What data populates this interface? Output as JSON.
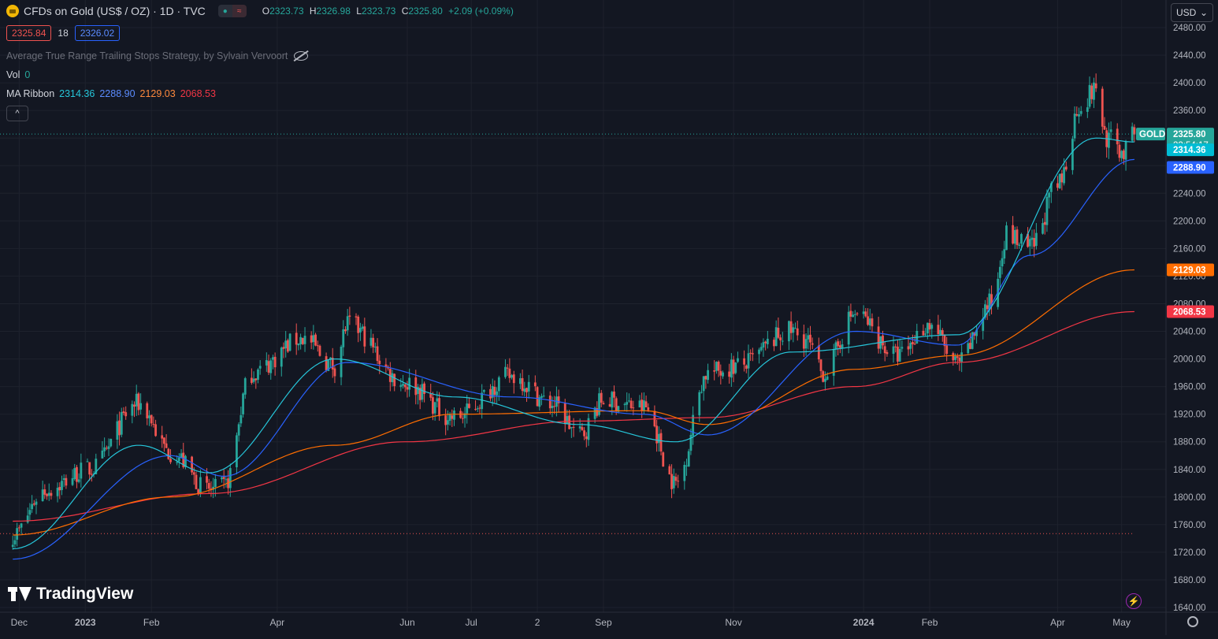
{
  "header": {
    "symbol_title": "CFDs on Gold (US$ / OZ) · 1D · TVC",
    "status_icons": [
      "●",
      "≈"
    ],
    "ohlc": {
      "o_label": "O",
      "o": "2323.73",
      "h_label": "H",
      "h": "2326.98",
      "l_label": "L",
      "l": "2323.73",
      "c_label": "C",
      "c": "2325.80",
      "change": "+2.09 (+0.09%)"
    },
    "sell_price": "2325.84",
    "spread": "18",
    "buy_price": "2326.02"
  },
  "indicators": {
    "strategy": "Average True Range Trailing Stops Strategy, by Sylvain Vervoort",
    "vol_label": "Vol",
    "vol_value": "0",
    "ma_label": "MA Ribbon",
    "ma_values": [
      "2314.36",
      "2288.90",
      "2129.03",
      "2068.53"
    ],
    "collapse_symbol": "^"
  },
  "currency": {
    "label": "USD",
    "chevron": "⌄"
  },
  "logo": {
    "text": "TradingView"
  },
  "colors": {
    "up": "#26a69a",
    "down": "#ef5350",
    "ma1": "#26c6da",
    "ma2": "#2962ff",
    "ma3": "#ff6d00",
    "ma4": "#f23645"
  },
  "chart_data": {
    "type": "candlestick",
    "symbol": "GOLD",
    "ylim": [
      1630,
      2480
    ],
    "yticks": [
      "1640.00",
      "1680.00",
      "1720.00",
      "1760.00",
      "1800.00",
      "1840.00",
      "1880.00",
      "1920.00",
      "1960.00",
      "2000.00",
      "2040.00",
      "2080.00",
      "2120.00",
      "2160.00",
      "2200.00",
      "2240.00",
      "2280.00",
      "2320.00",
      "2360.00",
      "2400.00",
      "2440.00",
      "2480.00"
    ],
    "xticks": [
      "Dec",
      "2023",
      "Feb",
      "Apr",
      "Jun",
      "Jul",
      "2",
      "Sep",
      "Nov",
      "2024",
      "Feb",
      "Apr",
      "May"
    ],
    "price_labels": [
      {
        "name": "GOLD",
        "value": "2325.80",
        "sub": "22:54:17",
        "color": "#26a69a"
      },
      {
        "name": "",
        "value": "2314.36",
        "color": "#00bcd4"
      },
      {
        "name": "",
        "value": "2288.90",
        "color": "#2962ff"
      },
      {
        "name": "",
        "value": "2129.03",
        "color": "#ff6d00"
      },
      {
        "name": "",
        "value": "2068.53",
        "color": "#f23645"
      }
    ],
    "close_series_keypoints": [
      [
        "2022-11-28",
        1745
      ],
      [
        "2022-12-13",
        1810
      ],
      [
        "2023-01-03",
        1840
      ],
      [
        "2023-01-26",
        1935
      ],
      [
        "2023-02-10",
        1865
      ],
      [
        "2023-02-28",
        1810
      ],
      [
        "2023-03-07",
        1815
      ],
      [
        "2023-03-20",
        1980
      ],
      [
        "2023-04-13",
        2030
      ],
      [
        "2023-04-28",
        1990
      ],
      [
        "2023-05-04",
        2050
      ],
      [
        "2023-05-31",
        1965
      ],
      [
        "2023-06-23",
        1915
      ],
      [
        "2023-07-20",
        1975
      ],
      [
        "2023-08-08",
        1935
      ],
      [
        "2023-08-21",
        1890
      ],
      [
        "2023-09-01",
        1940
      ],
      [
        "2023-09-20",
        1930
      ],
      [
        "2023-10-05",
        1820
      ],
      [
        "2023-10-20",
        1980
      ],
      [
        "2023-11-03",
        1990
      ],
      [
        "2023-11-28",
        2040
      ],
      [
        "2023-12-04",
        2030
      ],
      [
        "2023-12-13",
        1980
      ],
      [
        "2023-12-28",
        2065
      ],
      [
        "2024-01-17",
        2005
      ],
      [
        "2024-02-01",
        2050
      ],
      [
        "2024-02-14",
        1992
      ],
      [
        "2024-03-01",
        2080
      ],
      [
        "2024-03-08",
        2180
      ],
      [
        "2024-03-19",
        2160
      ],
      [
        "2024-04-01",
        2250
      ],
      [
        "2024-04-12",
        2370
      ],
      [
        "2024-04-19",
        2390
      ],
      [
        "2024-04-24",
        2320
      ],
      [
        "2024-05-02",
        2300
      ],
      [
        "2024-05-07",
        2325.8
      ]
    ],
    "ma_ribbon_keypoints": {
      "ma20": [
        [
          "2022-11-28",
          1725
        ],
        [
          "2023-01-26",
          1875
        ],
        [
          "2023-02-28",
          1835
        ],
        [
          "2023-04-28",
          2000
        ],
        [
          "2023-06-23",
          1945
        ],
        [
          "2023-08-21",
          1905
        ],
        [
          "2023-10-05",
          1880
        ],
        [
          "2023-11-28",
          2010
        ],
        [
          "2024-02-14",
          2035
        ],
        [
          "2024-04-19",
          2320
        ],
        [
          "2024-05-07",
          2314.36
        ]
      ],
      "ma50": [
        [
          "2022-11-28",
          1710
        ],
        [
          "2023-02-10",
          1860
        ],
        [
          "2023-03-07",
          1830
        ],
        [
          "2023-05-04",
          1995
        ],
        [
          "2023-07-20",
          1945
        ],
        [
          "2023-09-20",
          1920
        ],
        [
          "2023-10-20",
          1890
        ],
        [
          "2023-12-28",
          2040
        ],
        [
          "2024-02-14",
          2020
        ],
        [
          "2024-03-19",
          2150
        ],
        [
          "2024-05-07",
          2288.9
        ]
      ],
      "ma100": [
        [
          "2022-11-28",
          1745
        ],
        [
          "2023-02-10",
          1800
        ],
        [
          "2023-04-28",
          1875
        ],
        [
          "2023-06-23",
          1920
        ],
        [
          "2023-09-20",
          1925
        ],
        [
          "2023-10-20",
          1905
        ],
        [
          "2023-12-28",
          1985
        ],
        [
          "2024-02-14",
          2005
        ],
        [
          "2024-05-07",
          2129.03
        ]
      ],
      "ma200": [
        [
          "2022-11-28",
          1765
        ],
        [
          "2023-02-28",
          1805
        ],
        [
          "2023-05-31",
          1880
        ],
        [
          "2023-08-21",
          1910
        ],
        [
          "2023-10-20",
          1915
        ],
        [
          "2023-12-28",
          1960
        ],
        [
          "2024-02-14",
          1995
        ],
        [
          "2024-05-07",
          2068.53
        ]
      ]
    }
  }
}
